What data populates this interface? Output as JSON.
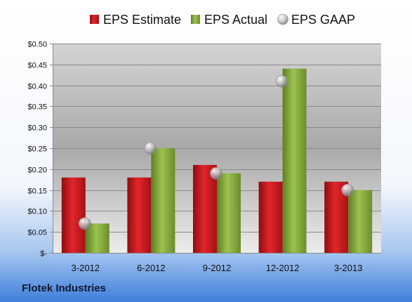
{
  "company": "Flotek Industries",
  "chart_data": {
    "type": "bar",
    "categories": [
      "3-2012",
      "6-2012",
      "9-2012",
      "12-2012",
      "3-2013"
    ],
    "series": [
      {
        "name": "EPS Estimate",
        "kind": "bar",
        "color": "#c8181a",
        "values": [
          0.18,
          0.18,
          0.21,
          0.17,
          0.17
        ]
      },
      {
        "name": "EPS Actual",
        "kind": "bar",
        "color": "#8fb23d",
        "values": [
          0.07,
          0.25,
          0.19,
          0.44,
          0.15
        ]
      },
      {
        "name": "EPS GAAP",
        "kind": "marker",
        "color": "#b8b8b8",
        "values": [
          0.07,
          0.25,
          0.19,
          0.41,
          0.15
        ]
      }
    ],
    "ylim": [
      0,
      0.5
    ],
    "yticks": [
      0,
      0.05,
      0.1,
      0.15,
      0.2,
      0.25,
      0.3,
      0.35,
      0.4,
      0.45,
      0.5
    ],
    "ytick_labels": [
      "$-",
      "$0.05",
      "$0.10",
      "$0.15",
      "$0.20",
      "$0.25",
      "$0.30",
      "$0.35",
      "$0.40",
      "$0.45",
      "$0.50"
    ],
    "grid": true,
    "legend_position": "top"
  }
}
